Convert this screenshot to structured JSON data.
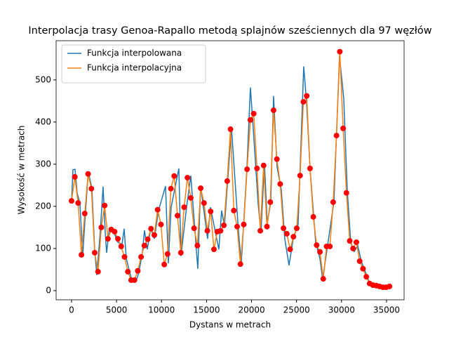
{
  "chart_data": {
    "type": "line",
    "title": "Interpolacja trasy Genoa-Rapallo metodą splajnów sześciennych dla 97 węzłów",
    "x_label": "Dystans w metrach",
    "y_label": "Wysokość w metrach",
    "xlim": [
      -1710,
      36950
    ],
    "ylim": [
      -21.7,
      593
    ],
    "xticks": [
      0,
      5000,
      10000,
      15000,
      20000,
      25000,
      30000,
      35000
    ],
    "yticks": [
      0,
      100,
      200,
      300,
      400,
      500
    ],
    "legend": "upper left",
    "series": [
      {
        "name": "Funkcja interpolowana",
        "color": "#1f77b4",
        "x": [
          0,
          156,
          390,
          623,
          935,
          1247,
          1559,
          1870,
          2260,
          2572,
          2806,
          3196,
          3507,
          3741,
          3897,
          4209,
          4677,
          5144,
          5612,
          5846,
          6080,
          6469,
          6781,
          7170,
          7482,
          7872,
          8106,
          8418,
          8808,
          9197,
          9665,
          10444,
          10756,
          11068,
          11925,
          12160,
          12783,
          13251,
          14030,
          14342,
          15121,
          15432,
          16367,
          16679,
          16991,
          17770,
          18550,
          18862,
          19485,
          19875,
          20265,
          20732,
          21044,
          21434,
          21745,
          22135,
          22447,
          22837,
          23304,
          23694,
          24162,
          24629,
          25175,
          25798,
          26110,
          26500,
          27124,
          27591,
          27903,
          28449,
          29150,
          29774,
          30242,
          30631,
          31021,
          31411,
          31800,
          32190,
          32580,
          33126,
          33749,
          34528,
          35308
        ],
        "values": [
          207,
          287,
          288,
          232,
          207,
          82,
          190,
          282,
          243,
          98,
          37,
          140,
          247,
          140,
          90,
          148,
          140,
          115,
          110,
          147,
          77,
          43,
          20,
          23,
          43,
          90,
          143,
          98,
          148,
          123,
          190,
          248,
          65,
          198,
          290,
          82,
          198,
          273,
          52,
          248,
          123,
          198,
          98,
          190,
          153,
          387,
          140,
          65,
          290,
          482,
          360,
          207,
          137,
          303,
          160,
          210,
          462,
          293,
          240,
          123,
          60,
          123,
          157,
          532,
          448,
          290,
          115,
          77,
          27,
          107,
          210,
          557,
          457,
          240,
          115,
          93,
          107,
          70,
          48,
          17,
          10,
          8,
          10
        ]
      },
      {
        "name": "Funkcja interpolacyjna",
        "color": "#ff7f0e",
        "marker_color": "#ff0000",
        "x": [
          0,
          368,
          736,
          1104,
          1472,
          1840,
          2208,
          2576,
          2944,
          3312,
          3680,
          4048,
          4416,
          4784,
          5152,
          5520,
          5888,
          6256,
          6624,
          6992,
          7360,
          7728,
          8096,
          8464,
          8832,
          9200,
          9568,
          9936,
          10304,
          10672,
          11040,
          11408,
          11776,
          12144,
          12512,
          12880,
          13248,
          13616,
          13984,
          14352,
          14720,
          15088,
          15456,
          15824,
          16192,
          16560,
          16928,
          17296,
          17664,
          18032,
          18400,
          18768,
          19136,
          19504,
          19872,
          20240,
          20608,
          20976,
          21344,
          21712,
          22080,
          22448,
          22816,
          23184,
          23552,
          23920,
          24288,
          24656,
          25024,
          25392,
          25760,
          26128,
          26496,
          26864,
          27232,
          27600,
          27968,
          28336,
          28704,
          29072,
          29440,
          29808,
          30176,
          30544,
          30912,
          31280,
          31648,
          32016,
          32384,
          32752,
          33120,
          33488,
          33856,
          34224,
          34592,
          34960,
          35328
        ],
        "values": [
          213,
          270,
          208,
          85,
          183,
          277,
          242,
          90,
          45,
          150,
          202,
          123,
          145,
          140,
          123,
          105,
          80,
          45,
          25,
          25,
          47,
          80,
          107,
          122,
          147,
          132,
          192,
          157,
          62,
          87,
          242,
          272,
          178,
          90,
          198,
          268,
          220,
          148,
          107,
          243,
          208,
          142,
          188,
          98,
          140,
          142,
          155,
          260,
          383,
          190,
          152,
          63,
          157,
          288,
          405,
          420,
          290,
          142,
          297,
          152,
          210,
          428,
          312,
          253,
          148,
          135,
          98,
          128,
          148,
          273,
          448,
          462,
          290,
          175,
          108,
          92,
          28,
          105,
          105,
          210,
          368,
          567,
          385,
          232,
          118,
          100,
          115,
          70,
          52,
          33,
          17,
          13,
          12,
          10,
          8,
          8,
          10
        ]
      }
    ]
  }
}
